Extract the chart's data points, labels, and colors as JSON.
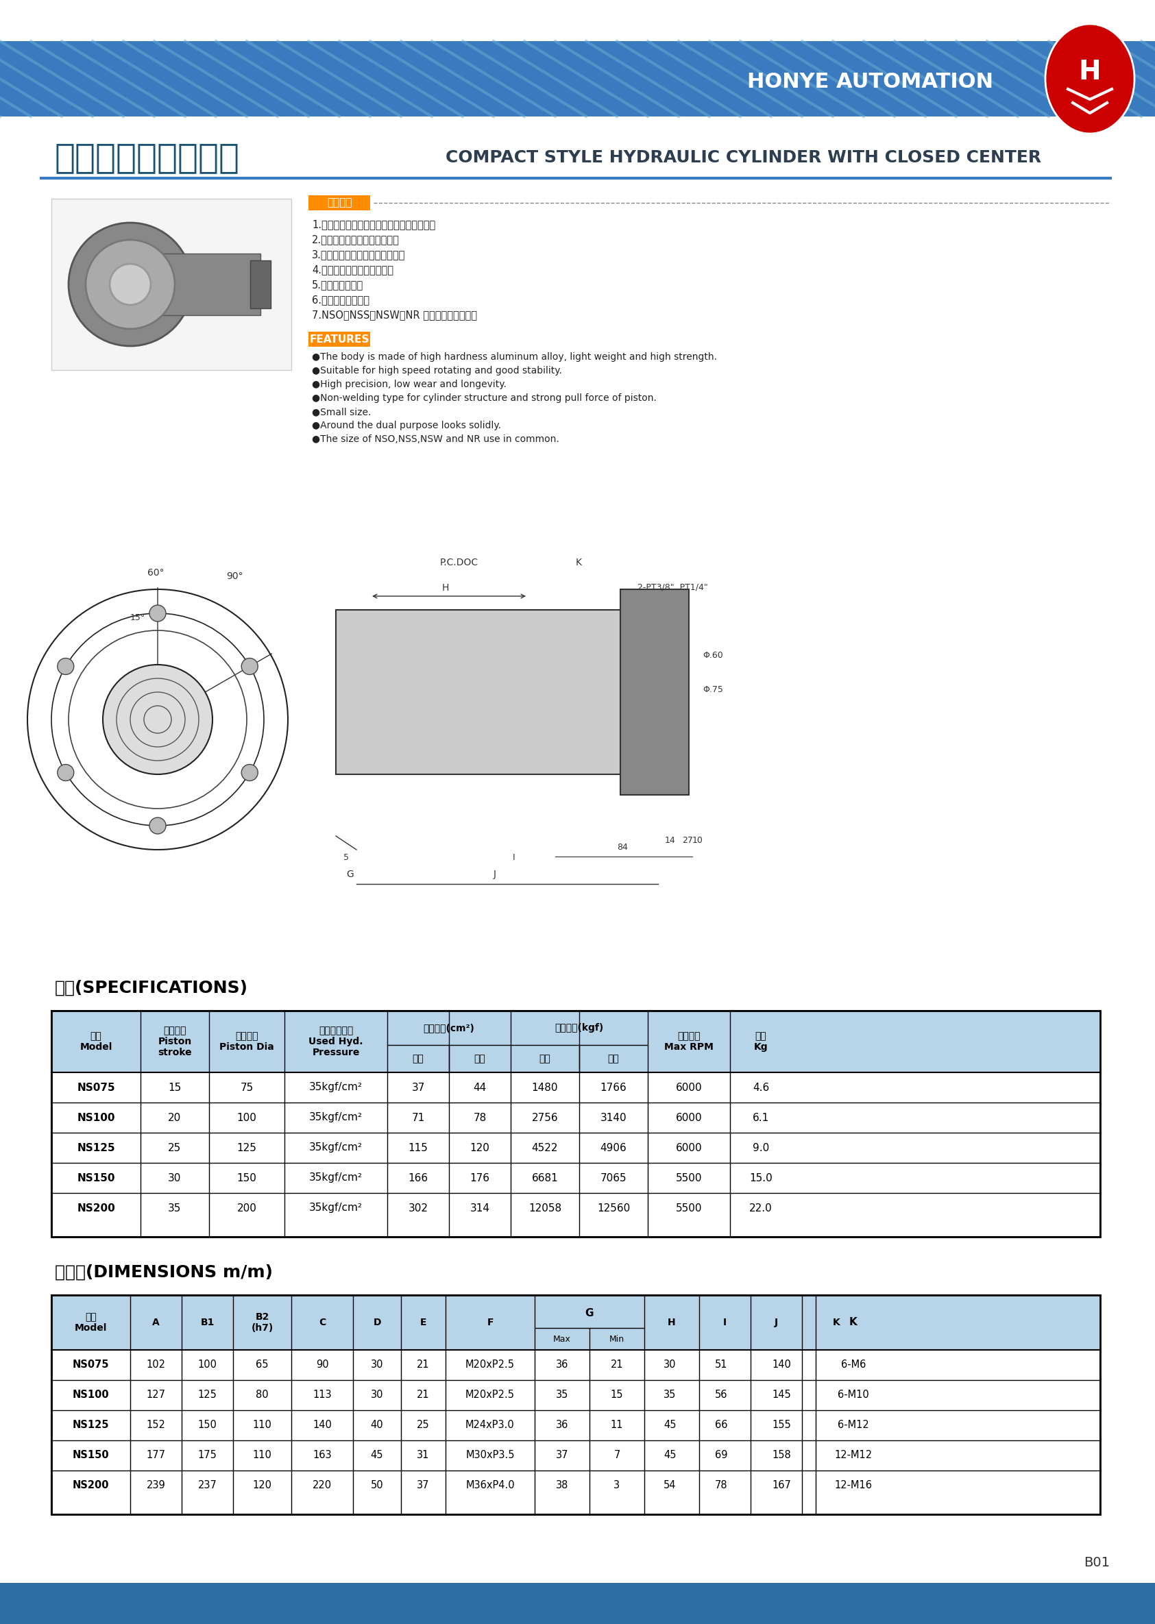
{
  "title_chinese": "油壓超薄中實迴轉缸",
  "title_english": "COMPACT STYLE HYDRAULIC CYLINDER WITH CLOSED CENTER",
  "brand": "HONYE AUTOMATION",
  "page_num": "B01",
  "header_bg": "#3a7bbf",
  "header_stripe_light": "#a0c0e0",
  "footer_bg": "#2e6fa3",
  "features_chinese": [
    "1.本體採高強度鋁合金製造，質輕，強度高。",
    "2.適用於高速迴轉，穩定性佳。",
    "3.精度高，磨耗少，使用壽命長。",
    "4.非焊接式，活塞拉力特強。",
    "5.超級輕便短小。",
    "6.可附後兩用鎖固。",
    "7.NSO、NSS、NSW、NR 系列部分尺寸共用。"
  ],
  "features_english": [
    "●The body is made of high hardness aluminum alloy, light weight and high strength.",
    "●Suitable for high speed rotating and good stability.",
    "●High precision, low wear and longevity.",
    "●Non-welding type for cylinder structure and strong pull force of piston.",
    "●Small size.",
    "●Around the dual purpose looks solidly.",
    "●The size of NSO,NSS,NSW and NR use in common."
  ],
  "spec_table_title": "規格(SPECIFICATIONS)",
  "spec_header_bg": "#b8d4e8",
  "spec_headers": [
    "型式\nModel",
    "活塞行程\nPiston\nstroke",
    "活塞直徑\nPiston Dia",
    "使用油壓壓力\nUsed Hyd.\nPressure",
    "活塞面積(cm²)",
    "最大拉力(kgf)",
    "最高轉速\nMax RPM",
    "重量\nKg"
  ],
  "spec_subheaders": [
    "拉側",
    "推側",
    "拉側",
    "推側"
  ],
  "spec_data": [
    [
      "NS075",
      "15",
      "75",
      "35kgf/cm²",
      "37",
      "44",
      "1480",
      "1766",
      "6000",
      "4.6"
    ],
    [
      "NS100",
      "20",
      "100",
      "35kgf/cm²",
      "71",
      "78",
      "2756",
      "3140",
      "6000",
      "6.1"
    ],
    [
      "NS125",
      "25",
      "125",
      "35kgf/cm²",
      "115",
      "120",
      "4522",
      "4906",
      "6000",
      "9.0"
    ],
    [
      "NS150",
      "30",
      "150",
      "35kgf/cm²",
      "166",
      "176",
      "6681",
      "7065",
      "5500",
      "15.0"
    ],
    [
      "NS200",
      "35",
      "200",
      "35kgf/cm²",
      "302",
      "314",
      "12058",
      "12560",
      "5500",
      "22.0"
    ]
  ],
  "dim_table_title": "尺寸表(DIMENSIONS m/m)",
  "dim_headers": [
    "型式\nModel",
    "A",
    "B1",
    "B2\n(h7)",
    "C",
    "D",
    "E",
    "F",
    "G",
    "H",
    "I",
    "J",
    "K"
  ],
  "dim_g_subheaders": [
    "Max",
    "Min"
  ],
  "dim_data": [
    [
      "NS075",
      "102",
      "100",
      "65",
      "90",
      "30",
      "21",
      "M20xP2.5",
      "36",
      "21",
      "30",
      "51",
      "140",
      "6-M6"
    ],
    [
      "NS100",
      "127",
      "125",
      "80",
      "113",
      "30",
      "21",
      "M20xP2.5",
      "35",
      "15",
      "35",
      "56",
      "145",
      "6-M10"
    ],
    [
      "NS125",
      "152",
      "150",
      "110",
      "140",
      "40",
      "25",
      "M24xP3.0",
      "36",
      "11",
      "45",
      "66",
      "155",
      "6-M12"
    ],
    [
      "NS150",
      "177",
      "175",
      "110",
      "163",
      "45",
      "31",
      "M30xP3.5",
      "37",
      "7",
      "45",
      "69",
      "158",
      "12-M12"
    ],
    [
      "NS200",
      "239",
      "237",
      "120",
      "220",
      "50",
      "37",
      "M36xP4.0",
      "38",
      "3",
      "54",
      "78",
      "167",
      "12-M16"
    ]
  ],
  "product_features_label_cn": "產品特色",
  "product_features_label_en": "FEATURES",
  "table_border_color": "#000000",
  "table_header_text_color": "#000000",
  "title_color_chinese": "#1a5276",
  "title_color_english": "#2e4057"
}
